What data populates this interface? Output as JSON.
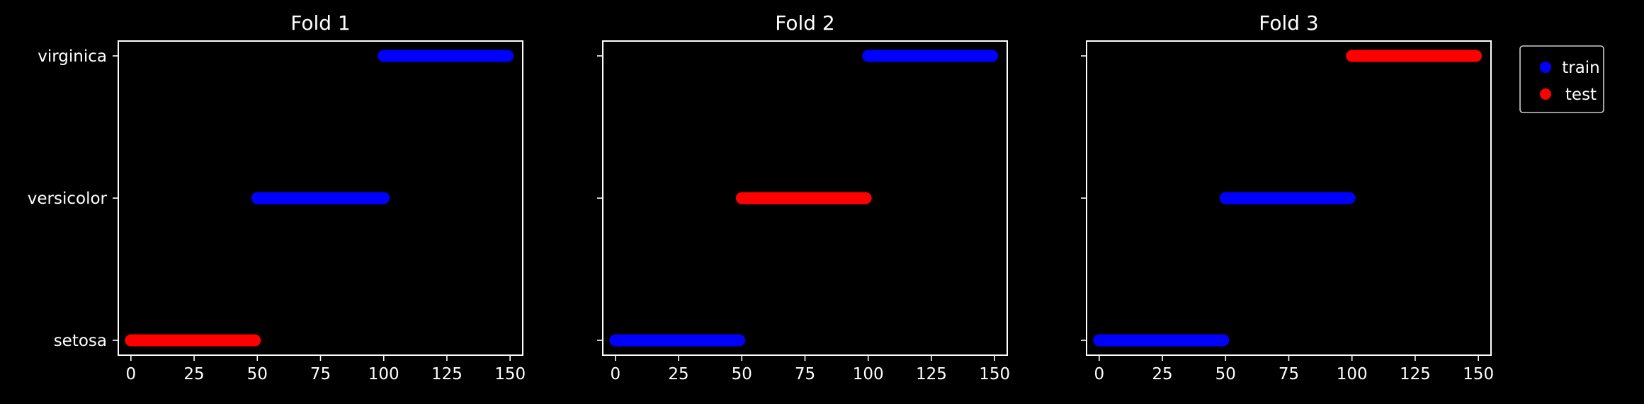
{
  "chart_data": [
    {
      "type": "scatter",
      "title": "Fold 1",
      "xlim": [
        -5,
        155
      ],
      "xticks": [
        0,
        25,
        50,
        75,
        100,
        125,
        150
      ],
      "yticks": [
        "setosa",
        "versicolor",
        "virginica"
      ],
      "series": [
        {
          "name": "train",
          "color": "#0000ff",
          "segments": [
            {
              "y": "versicolor",
              "x": [
                50,
                100
              ]
            },
            {
              "y": "virginica",
              "x": [
                100,
                149
              ]
            }
          ]
        },
        {
          "name": "test",
          "color": "#ff0000",
          "segments": [
            {
              "y": "setosa",
              "x": [
                0,
                49
              ]
            }
          ]
        }
      ]
    },
    {
      "type": "scatter",
      "title": "Fold 2",
      "xlim": [
        -5,
        155
      ],
      "xticks": [
        0,
        25,
        50,
        75,
        100,
        125,
        150
      ],
      "yticks": [
        "setosa",
        "versicolor",
        "virginica"
      ],
      "series": [
        {
          "name": "train",
          "color": "#0000ff",
          "segments": [
            {
              "y": "setosa",
              "x": [
                0,
                49
              ]
            },
            {
              "y": "virginica",
              "x": [
                100,
                149
              ]
            }
          ]
        },
        {
          "name": "test",
          "color": "#ff0000",
          "segments": [
            {
              "y": "versicolor",
              "x": [
                50,
                99
              ]
            }
          ]
        }
      ]
    },
    {
      "type": "scatter",
      "title": "Fold 3",
      "xlim": [
        -5,
        155
      ],
      "xticks": [
        0,
        25,
        50,
        75,
        100,
        125,
        150
      ],
      "yticks": [
        "setosa",
        "versicolor",
        "virginica"
      ],
      "series": [
        {
          "name": "train",
          "color": "#0000ff",
          "segments": [
            {
              "y": "setosa",
              "x": [
                0,
                49
              ]
            },
            {
              "y": "versicolor",
              "x": [
                50,
                99
              ]
            }
          ]
        },
        {
          "name": "test",
          "color": "#ff0000",
          "segments": [
            {
              "y": "virginica",
              "x": [
                100,
                149
              ]
            }
          ]
        }
      ]
    }
  ],
  "legend": {
    "placement": "outside-right",
    "entries": [
      {
        "label": "train",
        "color": "#0000ff"
      },
      {
        "label": "test",
        "color": "#ff0000"
      }
    ]
  }
}
